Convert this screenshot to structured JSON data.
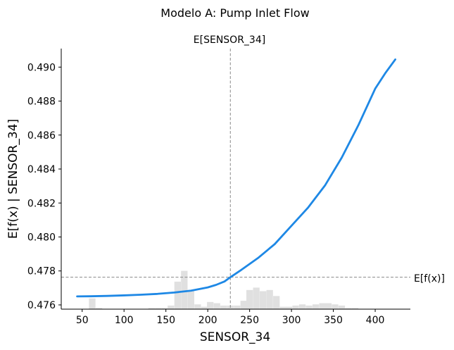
{
  "chart_data": {
    "type": "line",
    "title": "Modelo A: Pump Inlet Flow",
    "xlabel": "SENSOR_34",
    "ylabel": "E[f(x) | SENSOR_34]",
    "xlim": [
      25,
      442
    ],
    "ylim": [
      0.47575,
      0.49109
    ],
    "xticks": [
      50,
      100,
      150,
      200,
      250,
      300,
      350,
      400
    ],
    "yticks": [
      0.476,
      0.478,
      0.48,
      0.482,
      0.484,
      0.486,
      0.488,
      0.49
    ],
    "ytick_labels": [
      "0.476",
      "0.478",
      "0.480",
      "0.482",
      "0.484",
      "0.486",
      "0.488",
      "0.490"
    ],
    "grid": false,
    "expected_feature": {
      "label": "E[SENSOR_34]",
      "value": 227
    },
    "expected_output": {
      "label": "E[f(x)]",
      "value": 0.47763
    },
    "line_color": "#1e88e5",
    "series": [
      {
        "x": [
          44,
          60,
          80,
          100,
          120,
          140,
          160,
          180,
          200,
          210,
          220,
          227,
          240,
          260,
          280,
          300,
          320,
          340,
          360,
          380,
          400,
          412,
          424
        ],
        "y": [
          0.4765,
          0.47651,
          0.47653,
          0.47656,
          0.4766,
          0.47665,
          0.47673,
          0.47684,
          0.47703,
          0.47718,
          0.47738,
          0.47763,
          0.47806,
          0.47876,
          0.47958,
          0.48066,
          0.48174,
          0.48303,
          0.48467,
          0.48659,
          0.48873,
          0.48964,
          0.49045
        ]
      }
    ],
    "histogram": {
      "color": "#e0e0e0",
      "bin_width": 7.8,
      "bins": [
        {
          "x": 62,
          "count": 9
        },
        {
          "x": 70,
          "count": 1
        },
        {
          "x": 133,
          "count": 1
        },
        {
          "x": 141,
          "count": 1
        },
        {
          "x": 149,
          "count": 1
        },
        {
          "x": 156,
          "count": 3
        },
        {
          "x": 164,
          "count": 23
        },
        {
          "x": 172,
          "count": 32
        },
        {
          "x": 180,
          "count": 16
        },
        {
          "x": 188,
          "count": 4
        },
        {
          "x": 196,
          "count": 2
        },
        {
          "x": 203,
          "count": 6
        },
        {
          "x": 211,
          "count": 5
        },
        {
          "x": 219,
          "count": 3
        },
        {
          "x": 227,
          "count": 3
        },
        {
          "x": 235,
          "count": 3
        },
        {
          "x": 243,
          "count": 7
        },
        {
          "x": 250,
          "count": 16
        },
        {
          "x": 258,
          "count": 18
        },
        {
          "x": 266,
          "count": 15
        },
        {
          "x": 274,
          "count": 16
        },
        {
          "x": 282,
          "count": 11
        },
        {
          "x": 290,
          "count": 2
        },
        {
          "x": 297,
          "count": 2
        },
        {
          "x": 305,
          "count": 3
        },
        {
          "x": 313,
          "count": 4
        },
        {
          "x": 321,
          "count": 3
        },
        {
          "x": 329,
          "count": 4
        },
        {
          "x": 337,
          "count": 5
        },
        {
          "x": 344,
          "count": 5
        },
        {
          "x": 352,
          "count": 4
        },
        {
          "x": 360,
          "count": 3
        },
        {
          "x": 368,
          "count": 1
        },
        {
          "x": 376,
          "count": 1
        }
      ]
    }
  }
}
